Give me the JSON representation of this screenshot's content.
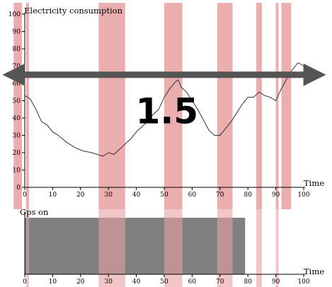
{
  "chart_data": [
    {
      "type": "line",
      "title": "Electricity consumption",
      "xlabel": "Time",
      "ylabel": "",
      "xlim": [
        0,
        100
      ],
      "ylim": [
        0,
        100
      ],
      "x_ticks": [
        0,
        10,
        20,
        30,
        40,
        50,
        60,
        70,
        80,
        90,
        100
      ],
      "y_ticks": [
        0,
        10,
        20,
        30,
        40,
        50,
        60,
        70,
        80,
        90,
        100
      ],
      "grid": false,
      "series": [
        {
          "color": "#333333",
          "x": [
            0,
            2,
            4,
            6,
            8,
            10,
            12,
            15,
            18,
            21,
            24,
            26,
            28,
            30,
            32,
            34,
            36,
            38,
            40,
            42,
            44,
            46,
            48,
            50,
            52,
            54,
            55,
            56,
            58,
            60,
            62,
            64,
            66,
            68,
            70,
            72,
            74,
            76,
            78,
            80,
            82,
            84,
            86,
            88,
            90,
            92,
            94,
            96,
            98,
            100
          ],
          "y": [
            53,
            51,
            45,
            38,
            36,
            32,
            30,
            26,
            23,
            21,
            20,
            19,
            18,
            20,
            19,
            22,
            25,
            28,
            32,
            35,
            38,
            42,
            45,
            52,
            57,
            61,
            62,
            58,
            55,
            50,
            45,
            39,
            33,
            30,
            30,
            34,
            38,
            43,
            48,
            52,
            52,
            55,
            53,
            52,
            50,
            57,
            63,
            68,
            72,
            70
          ]
        }
      ],
      "highlight_bands": [
        {
          "x0": 0.5,
          "x1": 1.5
        },
        {
          "x0": 26.5,
          "x1": 36
        },
        {
          "x0": 50,
          "x1": 56.5
        },
        {
          "x0": 69,
          "x1": 74.5
        },
        {
          "x0": 83,
          "x1": 85
        },
        {
          "x0": 90,
          "x1": 91
        },
        {
          "x0": -4,
          "x1": -1
        },
        {
          "x0": 92,
          "x1": 95.5
        }
      ],
      "band_color": "#e8a0a0",
      "annotation": {
        "text": "1.5",
        "arrow_color": "#555555",
        "arrow_y": 65,
        "arrow_x_range": [
          -8,
          108
        ],
        "text_x": 51,
        "text_y": 37
      }
    },
    {
      "type": "area",
      "title": "Gps on",
      "xlabel": "Time",
      "xlim": [
        0,
        100
      ],
      "x_ticks": [
        0,
        10,
        20,
        30,
        40,
        50,
        60,
        70,
        80,
        90,
        100
      ],
      "grid": false,
      "series": [
        {
          "color": "#808080",
          "on_from": 0,
          "on_to": 79
        }
      ],
      "highlight_bands": [
        {
          "x0": 0.5,
          "x1": 1.5
        },
        {
          "x0": 26.5,
          "x1": 36
        },
        {
          "x0": 50,
          "x1": 56.5
        },
        {
          "x0": 69,
          "x1": 74.5
        },
        {
          "x0": 83,
          "x1": 85
        },
        {
          "x0": 90,
          "x1": 91
        }
      ],
      "band_color": "#e8a0a0"
    }
  ]
}
